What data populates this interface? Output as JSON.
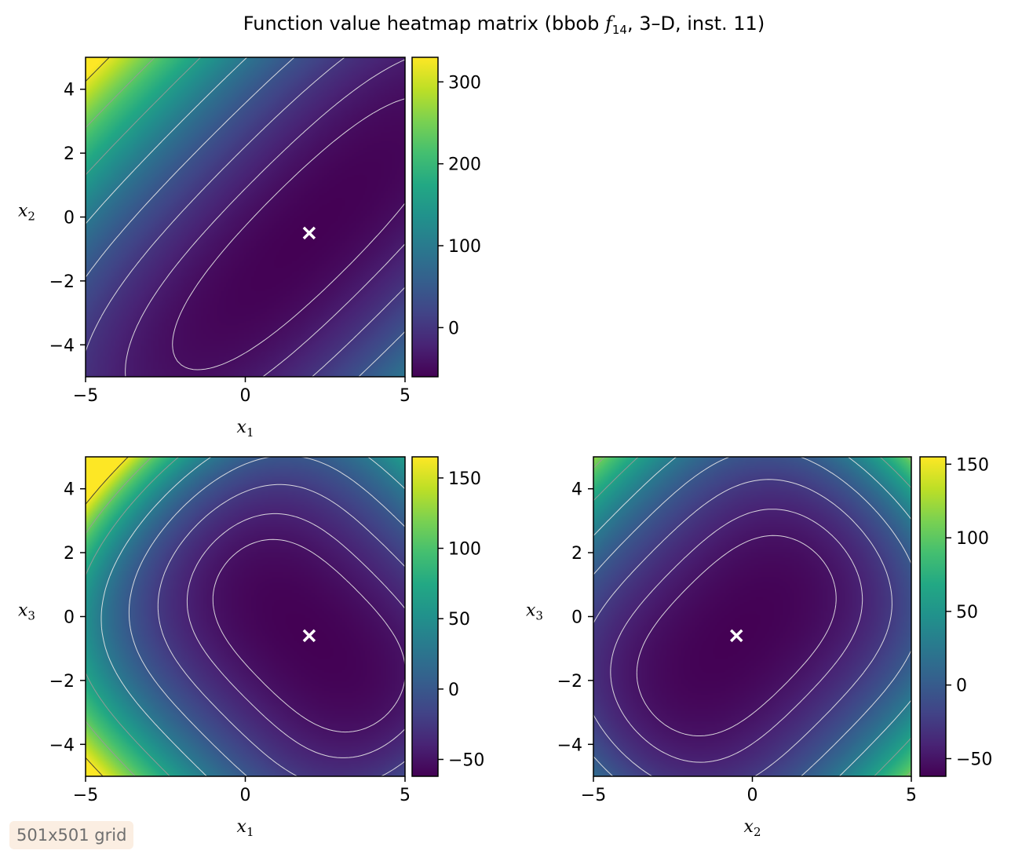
{
  "figure": {
    "title_main": "Function value heatmap matrix (bbob ",
    "title_f": "f",
    "title_sub": "14",
    "title_tail": ", 3–D, inst. 11)",
    "badge": "501x501 grid"
  },
  "colors": {
    "viridis": [
      "#440154",
      "#482475",
      "#414487",
      "#355f8d",
      "#2a788e",
      "#21918c",
      "#22a884",
      "#44bf70",
      "#7ad151",
      "#bddf26",
      "#fde725"
    ],
    "marker": "#ffffff",
    "contour_light": "#e8e8e8",
    "contour_dark": "#333333"
  },
  "chart_data": [
    {
      "type": "heatmap",
      "id": "x1x2",
      "xlabel": "x",
      "xlabel_sub": "1",
      "ylabel": "x",
      "ylabel_sub": "2",
      "xlim": [
        -5,
        5
      ],
      "ylim": [
        -5,
        5
      ],
      "xticks": [
        -5,
        0,
        5
      ],
      "yticks": [
        -4,
        -2,
        0,
        2,
        4
      ],
      "xtick_labels": [
        "−5",
        "0",
        "5"
      ],
      "ytick_labels": [
        "−4",
        "−2",
        "0",
        "2",
        "4"
      ],
      "colorbar_ticks": [
        0,
        100,
        200,
        300
      ],
      "colorbar_tick_labels": [
        "0",
        "100",
        "200",
        "300"
      ],
      "value_range": [
        -60,
        330
      ],
      "optimum": [
        2.0,
        -0.5
      ],
      "grid": false
    },
    {
      "type": "heatmap",
      "id": "x1x3",
      "xlabel": "x",
      "xlabel_sub": "1",
      "ylabel": "x",
      "ylabel_sub": "3",
      "xlim": [
        -5,
        5
      ],
      "ylim": [
        -5,
        5
      ],
      "xticks": [
        -5,
        0,
        5
      ],
      "yticks": [
        -4,
        -2,
        0,
        2,
        4
      ],
      "xtick_labels": [
        "−5",
        "0",
        "5"
      ],
      "ytick_labels": [
        "−4",
        "−2",
        "0",
        "2",
        "4"
      ],
      "colorbar_ticks": [
        -50,
        0,
        50,
        100,
        150
      ],
      "colorbar_tick_labels": [
        "−50",
        "0",
        "50",
        "100",
        "150"
      ],
      "value_range": [
        -62,
        165
      ],
      "optimum": [
        2.0,
        -0.6
      ],
      "grid": false
    },
    {
      "type": "heatmap",
      "id": "x2x3",
      "xlabel": "x",
      "xlabel_sub": "2",
      "ylabel": "x",
      "ylabel_sub": "3",
      "xlim": [
        -5,
        5
      ],
      "ylim": [
        -5,
        5
      ],
      "xticks": [
        -5,
        0,
        5
      ],
      "yticks": [
        -4,
        -2,
        0,
        2,
        4
      ],
      "xtick_labels": [
        "−5",
        "0",
        "5"
      ],
      "ytick_labels": [
        "−4",
        "−2",
        "0",
        "2",
        "4"
      ],
      "colorbar_ticks": [
        -50,
        0,
        50,
        100,
        150
      ],
      "colorbar_tick_labels": [
        "−50",
        "0",
        "50",
        "100",
        "150"
      ],
      "value_range": [
        -62,
        155
      ],
      "optimum": [
        -0.5,
        -0.6
      ],
      "grid": false
    }
  ]
}
